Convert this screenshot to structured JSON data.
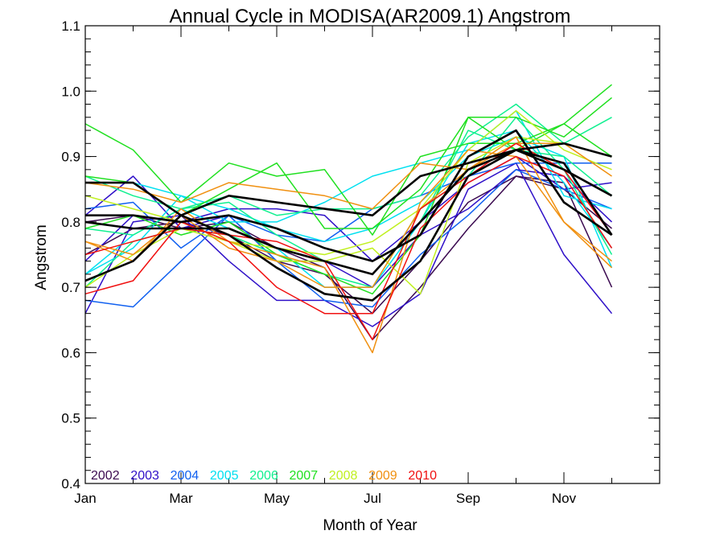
{
  "chart_data": {
    "type": "line",
    "title": "Annual Cycle in MODISA(AR2009.1) Angstrom",
    "xlabel": "Month of Year",
    "ylabel": "Angstrom",
    "xlim": [
      1,
      13
    ],
    "ylim": [
      0.4,
      1.1
    ],
    "x_ticks": [
      {
        "value": 1,
        "label": "Jan"
      },
      {
        "value": 3,
        "label": "Mar"
      },
      {
        "value": 5,
        "label": "May"
      },
      {
        "value": 7,
        "label": "Jul"
      },
      {
        "value": 9,
        "label": "Sep"
      },
      {
        "value": 11,
        "label": "Nov"
      }
    ],
    "y_ticks": [
      {
        "value": 0.4,
        "label": "0.4"
      },
      {
        "value": 0.5,
        "label": "0.5"
      },
      {
        "value": 0.6,
        "label": "0.6"
      },
      {
        "value": 0.7,
        "label": "0.7"
      },
      {
        "value": 0.8,
        "label": "0.8"
      },
      {
        "value": 0.9,
        "label": "0.9"
      },
      {
        "value": 1.0,
        "label": "1.0"
      },
      {
        "value": 1.1,
        "label": "1.1"
      }
    ],
    "x": [
      1,
      2,
      3,
      4,
      5,
      6,
      7,
      8,
      9,
      10,
      11,
      12
    ],
    "legend_placement": "bottom-left",
    "series": [
      {
        "name": "2002",
        "color": "#3b0a50",
        "values": [
          0.8,
          0.81,
          0.79,
          0.8,
          0.76,
          0.73,
          0.62,
          0.7,
          0.79,
          0.87,
          0.86,
          0.7
        ]
      },
      {
        "name": "2002",
        "color": "#3b0a50",
        "values": [
          0.75,
          0.79,
          0.8,
          0.78,
          0.74,
          0.72,
          0.66,
          0.74,
          0.83,
          0.87,
          0.85,
          0.79
        ]
      },
      {
        "name": "2003",
        "color": "#2f10c8",
        "values": [
          0.66,
          0.8,
          0.81,
          0.74,
          0.68,
          0.68,
          0.64,
          0.69,
          0.85,
          0.89,
          0.75,
          0.66
        ]
      },
      {
        "name": "2003",
        "color": "#2f10c8",
        "values": [
          0.81,
          0.87,
          0.79,
          0.81,
          0.74,
          0.74,
          0.7,
          0.78,
          0.82,
          0.88,
          0.87,
          0.8
        ]
      },
      {
        "name": "2003",
        "color": "#2f10c8",
        "values": [
          0.74,
          0.81,
          0.8,
          0.82,
          0.82,
          0.81,
          0.74,
          0.8,
          0.86,
          0.9,
          0.85,
          0.86
        ]
      },
      {
        "name": "2004",
        "color": "#1060f0",
        "values": [
          0.68,
          0.67,
          0.74,
          0.81,
          0.74,
          0.68,
          0.67,
          0.75,
          0.81,
          0.88,
          0.85,
          0.82
        ]
      },
      {
        "name": "2004",
        "color": "#1060f0",
        "values": [
          0.82,
          0.83,
          0.76,
          0.81,
          0.78,
          0.77,
          0.82,
          0.84,
          0.87,
          0.89,
          0.89,
          0.89
        ]
      },
      {
        "name": "2005",
        "color": "#00e0f0",
        "values": [
          0.72,
          0.76,
          0.84,
          0.82,
          0.79,
          0.77,
          0.79,
          0.83,
          0.9,
          0.93,
          0.9,
          0.73
        ]
      },
      {
        "name": "2005",
        "color": "#00e0f0",
        "values": [
          0.86,
          0.86,
          0.84,
          0.8,
          0.8,
          0.83,
          0.87,
          0.89,
          0.91,
          0.97,
          0.84,
          0.82
        ]
      },
      {
        "name": "2005",
        "color": "#00e0f0",
        "values": [
          0.72,
          0.78,
          0.82,
          0.79,
          0.76,
          0.7,
          0.7,
          0.8,
          0.92,
          0.94,
          0.86,
          0.76
        ]
      },
      {
        "name": "2006",
        "color": "#10f090",
        "values": [
          0.79,
          0.78,
          0.82,
          0.84,
          0.81,
          0.82,
          0.82,
          0.84,
          0.93,
          0.98,
          0.92,
          0.96
        ]
      },
      {
        "name": "2006",
        "color": "#10f090",
        "values": [
          0.87,
          0.84,
          0.82,
          0.83,
          0.78,
          0.74,
          0.72,
          0.8,
          0.94,
          0.91,
          0.9,
          0.84
        ]
      },
      {
        "name": "2006",
        "color": "#10f090",
        "values": [
          0.7,
          0.77,
          0.79,
          0.78,
          0.75,
          0.72,
          0.7,
          0.82,
          0.87,
          0.96,
          0.88,
          0.75
        ]
      },
      {
        "name": "2007",
        "color": "#20e020",
        "values": [
          0.95,
          0.91,
          0.83,
          0.89,
          0.87,
          0.88,
          0.78,
          0.9,
          0.92,
          0.92,
          0.95,
          1.01
        ]
      },
      {
        "name": "2007",
        "color": "#20e020",
        "values": [
          0.87,
          0.86,
          0.81,
          0.85,
          0.89,
          0.79,
          0.79,
          0.85,
          0.96,
          0.96,
          0.93,
          0.99
        ]
      },
      {
        "name": "2007",
        "color": "#20e020",
        "values": [
          0.79,
          0.81,
          0.78,
          0.8,
          0.75,
          0.72,
          0.69,
          0.78,
          0.96,
          0.91,
          0.95,
          0.9
        ]
      },
      {
        "name": "2008",
        "color": "#c0f020",
        "values": [
          0.84,
          0.82,
          0.8,
          0.77,
          0.74,
          0.74,
          0.76,
          0.69,
          0.89,
          0.93,
          0.92,
          0.9
        ]
      },
      {
        "name": "2008",
        "color": "#c0f020",
        "values": [
          0.7,
          0.75,
          0.79,
          0.77,
          0.76,
          0.75,
          0.77,
          0.82,
          0.91,
          0.97,
          0.91,
          0.88
        ]
      },
      {
        "name": "2009",
        "color": "#f09010",
        "values": [
          0.77,
          0.74,
          0.82,
          0.77,
          0.75,
          0.73,
          0.6,
          0.83,
          0.91,
          0.9,
          0.8,
          0.73
        ]
      },
      {
        "name": "2009",
        "color": "#f09010",
        "values": [
          0.86,
          0.85,
          0.83,
          0.86,
          0.85,
          0.84,
          0.82,
          0.89,
          0.88,
          0.92,
          0.92,
          0.87
        ]
      },
      {
        "name": "2009",
        "color": "#f09010",
        "values": [
          0.77,
          0.75,
          0.81,
          0.76,
          0.74,
          0.7,
          0.7,
          0.82,
          0.88,
          0.93,
          0.8,
          0.74
        ]
      },
      {
        "name": "2010",
        "color": "#f01010",
        "values": [
          0.69,
          0.71,
          0.8,
          0.77,
          0.7,
          0.66,
          0.66,
          0.82,
          0.87,
          0.92,
          0.88,
          0.78
        ]
      },
      {
        "name": "2010",
        "color": "#f01010",
        "values": [
          0.75,
          0.77,
          0.79,
          0.78,
          0.77,
          0.74,
          0.62,
          0.79,
          0.86,
          0.9,
          0.87,
          0.76
        ]
      },
      {
        "name": "",
        "color": "#000000",
        "width": 2.6,
        "values": [
          0.86,
          0.86,
          0.81,
          0.84,
          0.83,
          0.82,
          0.81,
          0.87,
          0.89,
          0.91,
          0.92,
          0.9
        ]
      },
      {
        "name": "",
        "color": "#000000",
        "width": 2.6,
        "values": [
          0.81,
          0.81,
          0.8,
          0.81,
          0.79,
          0.76,
          0.74,
          0.78,
          0.9,
          0.94,
          0.83,
          0.78
        ]
      },
      {
        "name": "",
        "color": "#000000",
        "width": 2.6,
        "values": [
          0.8,
          0.79,
          0.79,
          0.79,
          0.76,
          0.74,
          0.72,
          0.8,
          0.88,
          0.91,
          0.88,
          0.84
        ]
      },
      {
        "name": "",
        "color": "#000000",
        "width": 2.6,
        "values": [
          0.71,
          0.74,
          0.81,
          0.78,
          0.73,
          0.69,
          0.68,
          0.74,
          0.87,
          0.91,
          0.89,
          0.78
        ]
      }
    ],
    "legend": [
      {
        "label": "2002",
        "color": "#3b0a50"
      },
      {
        "label": "2003",
        "color": "#2f10c8"
      },
      {
        "label": "2004",
        "color": "#1060f0"
      },
      {
        "label": "2005",
        "color": "#00e0f0"
      },
      {
        "label": "2006",
        "color": "#10f090"
      },
      {
        "label": "2007",
        "color": "#20e020"
      },
      {
        "label": "2008",
        "color": "#c0f020"
      },
      {
        "label": "2009",
        "color": "#f09010"
      },
      {
        "label": "2010",
        "color": "#f01010"
      }
    ]
  }
}
